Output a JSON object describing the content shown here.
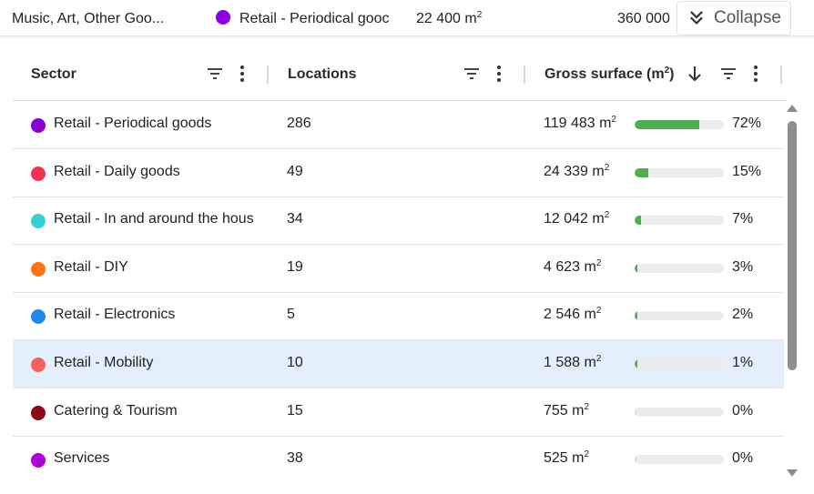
{
  "topbar": {
    "sector_prev": "Music, Art, Other Goo...",
    "sector_current": "Retail - Periodical gooc",
    "sector_current_color": "#8b00e0",
    "surface_number": "22 400 m",
    "surface_unit_exp": "2",
    "value": "360 000",
    "collapse_label": "Collapse"
  },
  "columns": [
    {
      "label": "Sector"
    },
    {
      "label": "Locations"
    },
    {
      "label": "Gross surface (m",
      "exp": "2",
      "suffix": ")",
      "sort": "descending"
    }
  ],
  "rows": [
    {
      "sector": "Retail - Periodical goods",
      "color": "#8a00d4",
      "locations": "286",
      "surface": "119 483 m",
      "exp": "2",
      "percent": "72%",
      "share": 0.72
    },
    {
      "sector": "Retail - Daily goods",
      "color": "#f0344f",
      "locations": "49",
      "surface": "24 339 m",
      "exp": "2",
      "percent": "15%",
      "share": 0.15
    },
    {
      "sector": "Retail - In and around the hous",
      "color": "#35d2d4",
      "locations": "34",
      "surface": "12 042 m",
      "exp": "2",
      "percent": "7%",
      "share": 0.07
    },
    {
      "sector": "Retail - DIY",
      "color": "#ff7412",
      "locations": "19",
      "surface": "4 623 m",
      "exp": "2",
      "percent": "3%",
      "share": 0.03
    },
    {
      "sector": "Retail - Electronics",
      "color": "#1f87ef",
      "locations": "5",
      "surface": "2 546 m",
      "exp": "2",
      "percent": "2%",
      "share": 0.02
    },
    {
      "sector": "Retail - Mobility",
      "color": "#f26060",
      "locations": "10",
      "surface": "1 588 m",
      "exp": "2",
      "percent": "1%",
      "share": 0.01,
      "selected": true
    },
    {
      "sector": "Catering & Tourism",
      "color": "#8b0a14",
      "locations": "15",
      "surface": "755 m",
      "exp": "2",
      "percent": "0%",
      "share": 0.0
    },
    {
      "sector": "Services",
      "color": "#b100d6",
      "locations": "38",
      "surface": "525 m",
      "exp": "2",
      "percent": "0%",
      "share": 0.0
    }
  ],
  "bar_color": "#4caf50",
  "selected_row_color": "#e3f0fb"
}
